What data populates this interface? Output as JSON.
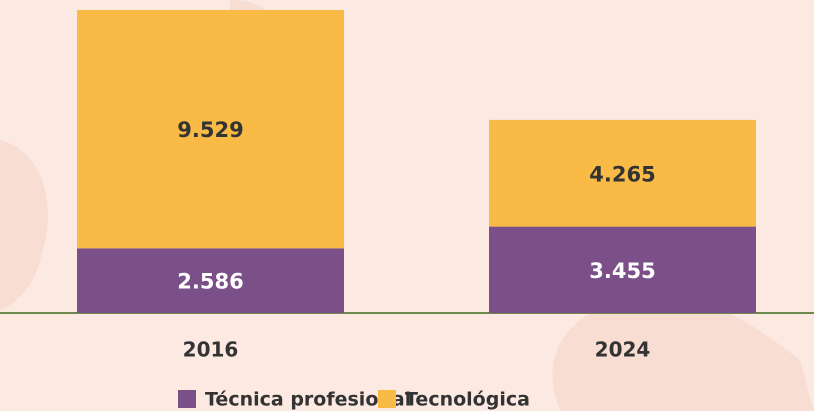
{
  "chart_data": {
    "type": "stacked_bar",
    "categories": [
      "2016",
      "2024"
    ],
    "series": [
      {
        "name": "Técnica profesional",
        "color": "#7b5089",
        "values": [
          2586,
          3455
        ],
        "value_labels": [
          "2.586",
          "3.455"
        ]
      },
      {
        "name": "Tecnológica",
        "color": "#f9bb45",
        "values": [
          9529,
          4265
        ],
        "value_labels": [
          "9.529",
          "4.265"
        ]
      }
    ]
  }
}
